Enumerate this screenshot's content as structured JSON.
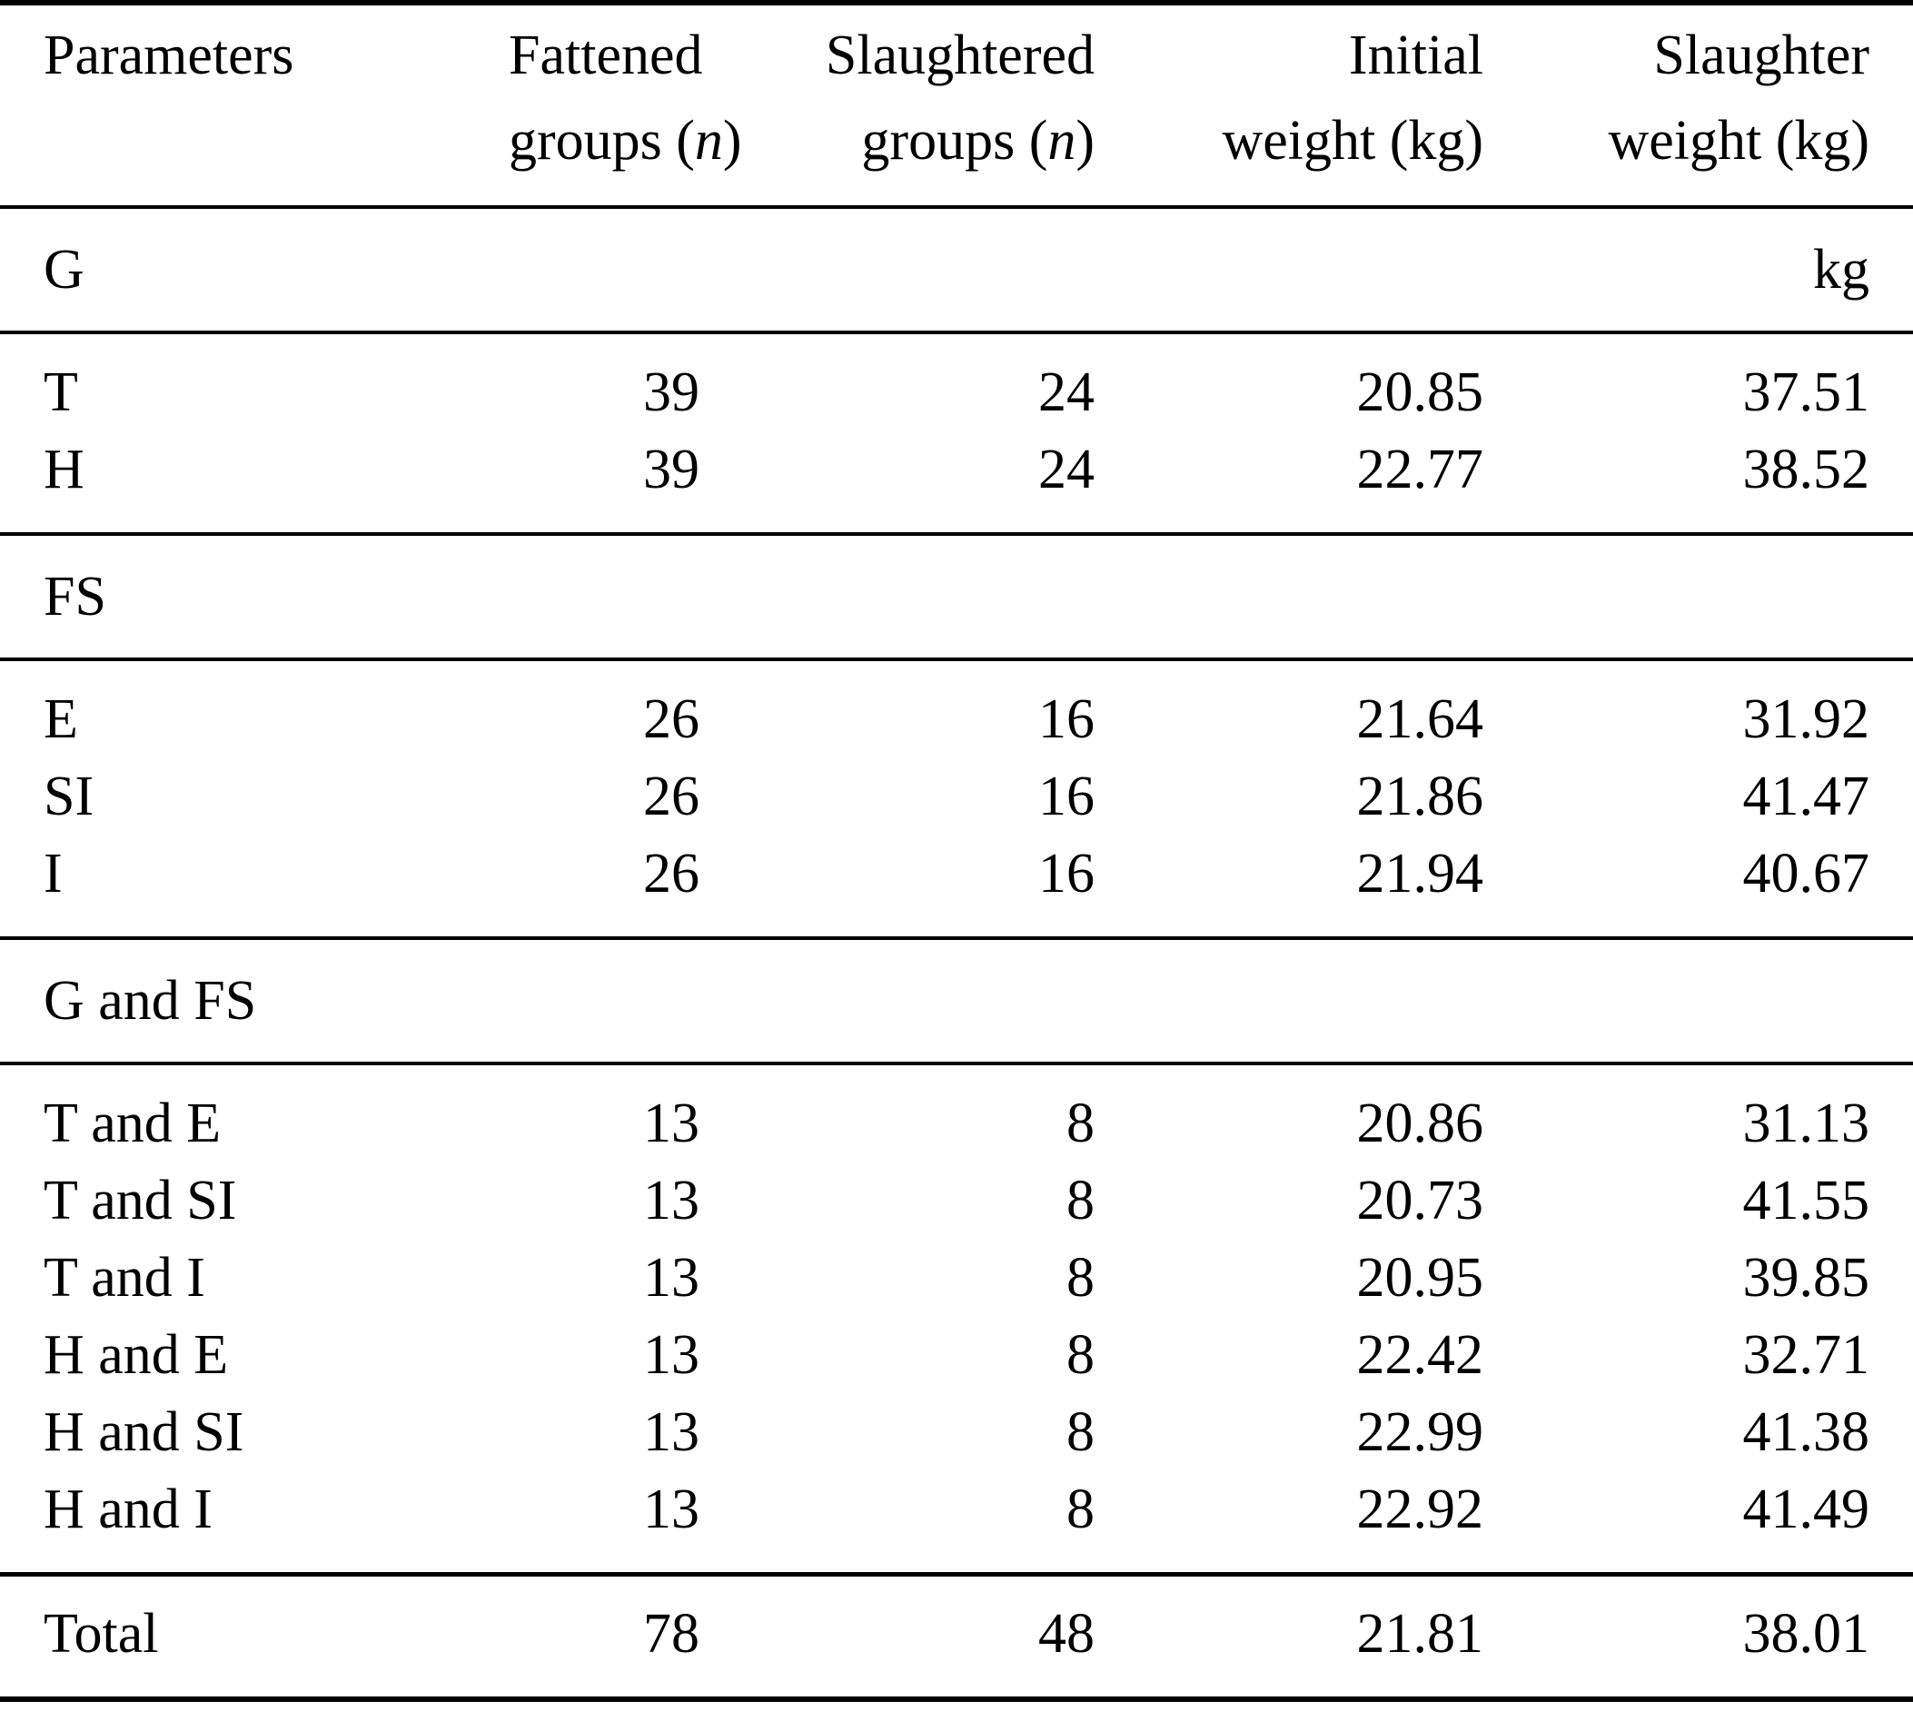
{
  "header": {
    "parameters": "Parameters",
    "fattened": {
      "line1": "Fattened",
      "line2_pre": "groups (",
      "n": "n",
      "line2_post": ")"
    },
    "slaughtered": {
      "line1": "Slaughtered",
      "line2_pre": "groups (",
      "n": "n",
      "line2_post": ")"
    },
    "initial": {
      "line1": "Initial",
      "line2": "weight (kg)"
    },
    "slaughter": {
      "line1": "Slaughter",
      "line2": "weight (kg)"
    }
  },
  "sections": [
    {
      "label": "G",
      "unit": "kg",
      "rows": [
        {
          "param": "T",
          "fattened": "39",
          "slaughtered": "24",
          "initial": "20.85",
          "slaughter": "37.51"
        },
        {
          "param": "H",
          "fattened": "39",
          "slaughtered": "24",
          "initial": "22.77",
          "slaughter": "38.52"
        }
      ]
    },
    {
      "label": "FS",
      "unit": "",
      "rows": [
        {
          "param": "E",
          "fattened": "26",
          "slaughtered": "16",
          "initial": "21.64",
          "slaughter": "31.92"
        },
        {
          "param": "SI",
          "fattened": "26",
          "slaughtered": "16",
          "initial": "21.86",
          "slaughter": "41.47"
        },
        {
          "param": "I",
          "fattened": "26",
          "slaughtered": "16",
          "initial": "21.94",
          "slaughter": "40.67"
        }
      ]
    },
    {
      "label": "G and FS",
      "unit": "",
      "rows": [
        {
          "param": "T and E",
          "fattened": "13",
          "slaughtered": "8",
          "initial": "20.86",
          "slaughter": "31.13"
        },
        {
          "param": "T and SI",
          "fattened": "13",
          "slaughtered": "8",
          "initial": "20.73",
          "slaughter": "41.55"
        },
        {
          "param": "T and I",
          "fattened": "13",
          "slaughtered": "8",
          "initial": "20.95",
          "slaughter": "39.85"
        },
        {
          "param": "H and E",
          "fattened": "13",
          "slaughtered": "8",
          "initial": "22.42",
          "slaughter": "32.71"
        },
        {
          "param": "H and SI",
          "fattened": "13",
          "slaughtered": "8",
          "initial": "22.99",
          "slaughter": "41.38"
        },
        {
          "param": "H and I",
          "fattened": "13",
          "slaughtered": "8",
          "initial": "22.92",
          "slaughter": "41.49"
        }
      ]
    }
  ],
  "total": {
    "param": "Total",
    "fattened": "78",
    "slaughtered": "48",
    "initial": "21.81",
    "slaughter": "38.01"
  }
}
